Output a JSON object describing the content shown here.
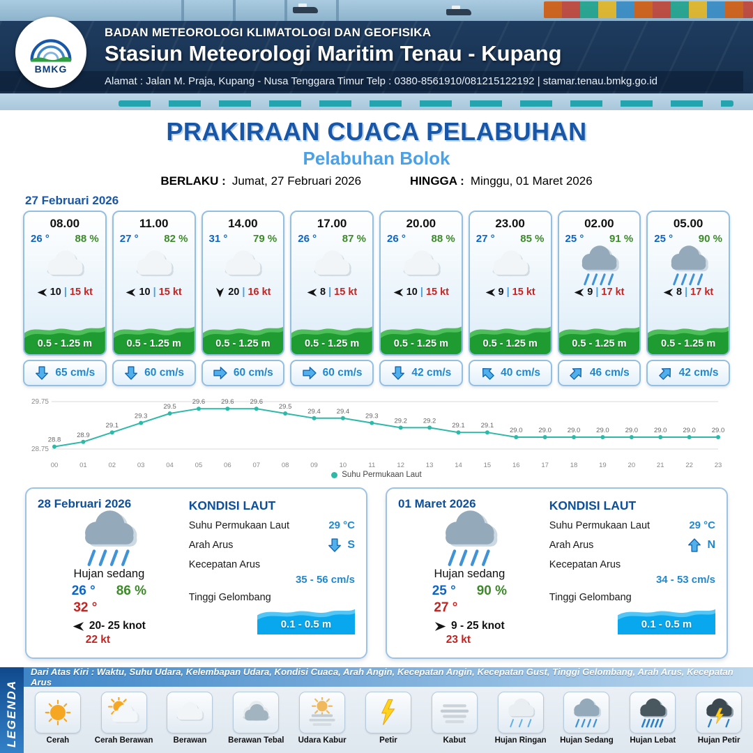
{
  "header": {
    "org": "BADAN METEOROLOGI KLIMATOLOGI DAN GEOFISIKA",
    "station": "Stasiun Meteorologi Maritim Tenau - Kupang",
    "address": "Alamat : Jalan M. Praja, Kupang - Nusa Tenggara Timur Telp : 0380-8561910/081215122192  | stamar.tenau.bmkg.go.id",
    "logo_text": "BMKG"
  },
  "title": {
    "main": "PRAKIRAAN CUACA PELABUHAN",
    "sub": "Pelabuhan Bolok",
    "berlaku_label": "BERLAKU :",
    "berlaku_value": "Jumat, 27 Februari 2026",
    "hingga_label": "HINGGA :",
    "hingga_value": "Minggu, 01 Maret 2026"
  },
  "forecast_date": "27 Februari 2026",
  "ui": {
    "wind_separator": "|"
  },
  "forecast_cards": [
    {
      "time": "08.00",
      "temp": "26 °",
      "humidity": "88 %",
      "icon": "berawan",
      "wind_rot": 180,
      "wind_speed": "10",
      "wind_gust": "15 kt",
      "wave": "0.5 - 1.25 m",
      "current_rot": 180,
      "current": "65 cm/s"
    },
    {
      "time": "11.00",
      "temp": "27 °",
      "humidity": "82 %",
      "icon": "berawan",
      "wind_rot": 180,
      "wind_speed": "10",
      "wind_gust": "15 kt",
      "wave": "0.5 - 1.25 m",
      "current_rot": 180,
      "current": "60 cm/s"
    },
    {
      "time": "14.00",
      "temp": "31 °",
      "humidity": "79 %",
      "icon": "berawan",
      "wind_rot": 90,
      "wind_speed": "20",
      "wind_gust": "16 kt",
      "wave": "0.5 - 1.25 m",
      "current_rot": 90,
      "current": "60 cm/s"
    },
    {
      "time": "17.00",
      "temp": "26 °",
      "humidity": "87 %",
      "icon": "berawan",
      "wind_rot": 180,
      "wind_speed": "8",
      "wind_gust": "15 kt",
      "wave": "0.5 - 1.25 m",
      "current_rot": 90,
      "current": "60 cm/s"
    },
    {
      "time": "20.00",
      "temp": "26 °",
      "humidity": "88 %",
      "icon": "berawan",
      "wind_rot": 180,
      "wind_speed": "10",
      "wind_gust": "15 kt",
      "wave": "0.5 - 1.25 m",
      "current_rot": 180,
      "current": "42 cm/s"
    },
    {
      "time": "23.00",
      "temp": "27 °",
      "humidity": "85 %",
      "icon": "berawan",
      "wind_rot": 180,
      "wind_speed": "9",
      "wind_gust": "15 kt",
      "wave": "0.5 - 1.25 m",
      "current_rot": 315,
      "current": "40 cm/s"
    },
    {
      "time": "02.00",
      "temp": "25 °",
      "humidity": "91 %",
      "icon": "hujan-sedang",
      "wind_rot": 180,
      "wind_speed": "9",
      "wind_gust": "17 kt",
      "wave": "0.5 - 1.25 m",
      "current_rot": 45,
      "current": "46 cm/s"
    },
    {
      "time": "05.00",
      "temp": "25 °",
      "humidity": "90 %",
      "icon": "hujan-sedang",
      "wind_rot": 180,
      "wind_speed": "8",
      "wind_gust": "17 kt",
      "wave": "0.5 - 1.25 m",
      "current_rot": 45,
      "current": "42 cm/s"
    }
  ],
  "chart_data": {
    "type": "line",
    "x": [
      "00",
      "01",
      "02",
      "03",
      "04",
      "05",
      "06",
      "07",
      "08",
      "09",
      "10",
      "11",
      "12",
      "13",
      "14",
      "15",
      "16",
      "17",
      "18",
      "19",
      "20",
      "21",
      "22",
      "23"
    ],
    "series": [
      {
        "name": "Suhu Permukaan Laut",
        "values": [
          28.8,
          28.9,
          29.1,
          29.3,
          29.5,
          29.6,
          29.6,
          29.6,
          29.5,
          29.4,
          29.4,
          29.3,
          29.2,
          29.2,
          29.1,
          29.1,
          29.0,
          29.0,
          29.0,
          29.0,
          29.0,
          29.0,
          29.0,
          29.0
        ]
      }
    ],
    "ylim": [
      28.75,
      29.75
    ],
    "yticks": [
      "29.75",
      "28.75"
    ],
    "line_color": "#2cb9a8",
    "grid": true,
    "legend_position": "bottom"
  },
  "daily_cards": [
    {
      "date": "28 Februari 2026",
      "icon": "hujan-sedang",
      "condition": "Hujan sedang",
      "temp_min": "26 °",
      "humidity": "86 %",
      "temp_max": "32 °",
      "wind_rot": 180,
      "wind_range": "20- 25 knot",
      "wind_gust": "22 kt",
      "sea": {
        "title": "KONDISI LAUT",
        "sst_label": "Suhu Permukaan Laut",
        "sst_value": "29 °C",
        "current_dir_label": "Arah Arus",
        "current_dir_rot": 180,
        "current_dir_value": "S",
        "current_speed_label": "Kecepatan Arus",
        "current_speed_value": "35 - 56 cm/s",
        "wave_label": "Tinggi Gelombang",
        "wave_value": "0.1 - 0.5 m"
      }
    },
    {
      "date": "01 Maret 2026",
      "icon": "hujan-sedang",
      "condition": "Hujan sedang",
      "temp_min": "25 °",
      "humidity": "90 %",
      "temp_max": "27 °",
      "wind_rot": 0,
      "wind_range": "9 - 25 knot",
      "wind_gust": "23 kt",
      "sea": {
        "title": "KONDISI LAUT",
        "sst_label": "Suhu Permukaan Laut",
        "sst_value": "29 °C",
        "current_dir_label": "Arah Arus",
        "current_dir_rot": 0,
        "current_dir_value": "N",
        "current_speed_label": "Kecepatan Arus",
        "current_speed_value": "34 - 53 cm/s",
        "wave_label": "Tinggi Gelombang",
        "wave_value": "0.1 - 0.5 m"
      }
    }
  ],
  "legend": {
    "ribbon": "LEGENDA",
    "header": "Dari Atas Kiri : Waktu, Suhu Udara, Kelembapan Udara, Kondisi Cuaca, Arah Angin, Kecepatan Angin, Kecepatan Gust, Tinggi Gelombang, Arah Arus, Kecepatan Arus",
    "items": [
      {
        "label": "Cerah",
        "icon": "cerah"
      },
      {
        "label": "Cerah Berawan",
        "icon": "cerah-berawan"
      },
      {
        "label": "Berawan",
        "icon": "berawan"
      },
      {
        "label": "Berawan Tebal",
        "icon": "berawan-tebal"
      },
      {
        "label": "Udara Kabur",
        "icon": "udara-kabur"
      },
      {
        "label": "Petir",
        "icon": "petir"
      },
      {
        "label": "Kabut",
        "icon": "kabut"
      },
      {
        "label": "Hujan Ringan",
        "icon": "hujan-ringan"
      },
      {
        "label": "Hujan Sedang",
        "icon": "hujan-sedang"
      },
      {
        "label": "Hujan Lebat",
        "icon": "hujan-lebat"
      },
      {
        "label": "Hujan Petir",
        "icon": "hujan-petir"
      }
    ]
  },
  "colors": {
    "accent_blue": "#1856a7",
    "light_blue": "#49a1e9",
    "temp_blue": "#0d64c8",
    "humidity_green": "#3c8a28",
    "gust_red": "#c62220",
    "wave_green": "#1f9c31",
    "current_blue": "#1e88d2",
    "chart_teal": "#2cb9a8"
  }
}
